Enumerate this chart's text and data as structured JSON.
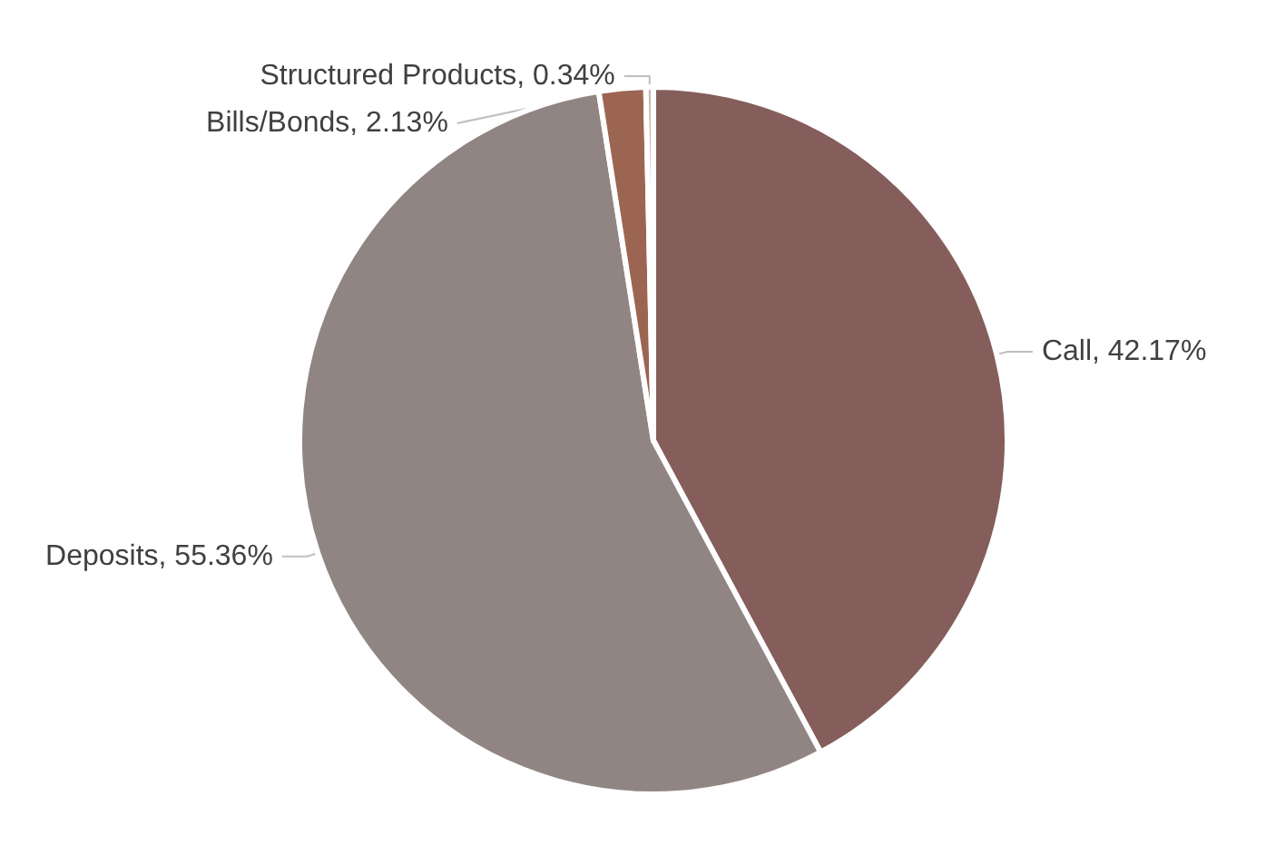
{
  "chart_data": {
    "type": "pie",
    "categories": [
      "Call",
      "Deposits",
      "Bills/Bonds",
      "Structured Products"
    ],
    "values": [
      42.17,
      55.36,
      2.13,
      0.34
    ],
    "value_labels": [
      "42.17%",
      "55.36%",
      "2.13%",
      "0.34%"
    ],
    "colors": [
      "#855e5c",
      "#918583",
      "#9c6552",
      "#c9b8b2"
    ],
    "legend": false
  }
}
